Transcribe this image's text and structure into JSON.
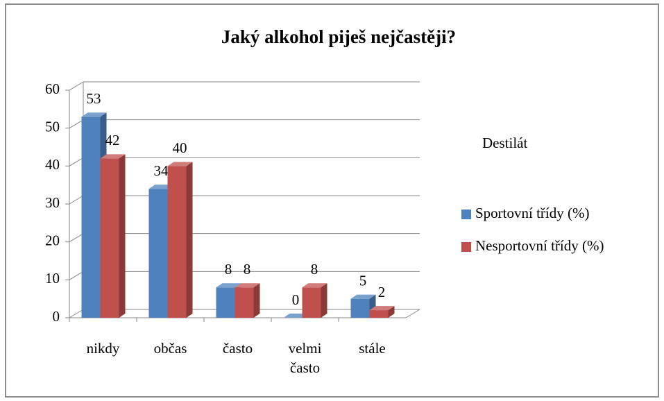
{
  "chart_data": {
    "type": "bar3d",
    "title": "Jaký alkohol piješ nejčastěji?",
    "legend_title": "Destilát",
    "categories": [
      "nikdy",
      "občas",
      "často",
      "velmi často",
      "stále"
    ],
    "series": [
      {
        "name": "Sportovní třídy (%)",
        "color": "#4f81bd",
        "values": [
          53,
          34,
          8,
          0,
          5
        ]
      },
      {
        "name": "Nesportovní třídy (%)",
        "color": "#c0504d",
        "values": [
          42,
          40,
          8,
          8,
          2
        ]
      }
    ],
    "ylim": [
      0,
      60
    ],
    "yticks": [
      0,
      10,
      20,
      30,
      40,
      50,
      60
    ],
    "grid": true,
    "legend": "right"
  }
}
